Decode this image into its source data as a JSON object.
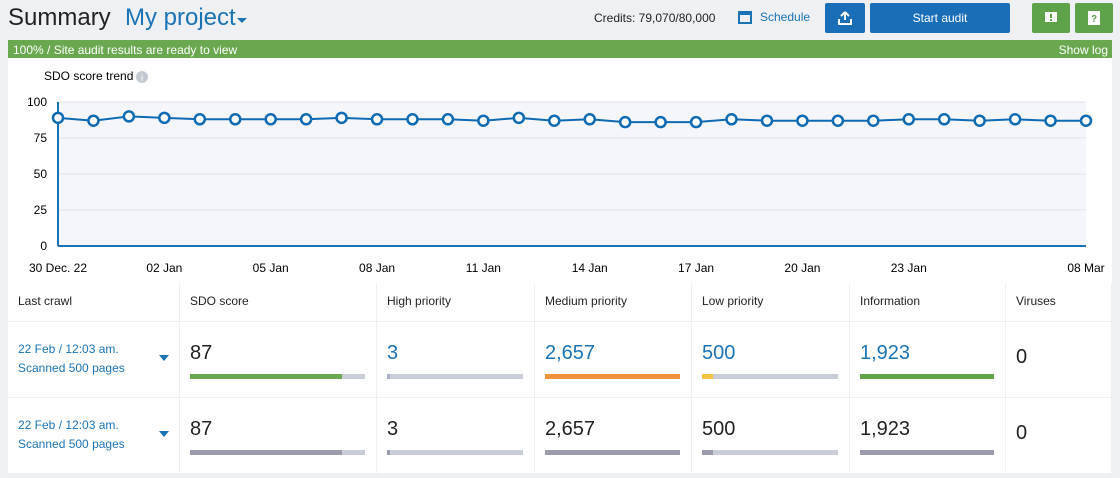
{
  "header": {
    "title": "Summary",
    "project": "My project",
    "credits": "Credits: 79,070/80,000",
    "schedule": "Schedule",
    "start_audit": "Start audit"
  },
  "status": {
    "message": "100% / Site audit results are ready to view",
    "show_log": "Show log"
  },
  "chart_data": {
    "type": "line",
    "title": "SDO score trend",
    "color": "#0f6ab4",
    "categories": [
      "30 Dec. 22",
      null,
      null,
      "02 Jan",
      null,
      null,
      "05 Jan",
      null,
      null,
      "08 Jan",
      null,
      null,
      "11 Jan",
      null,
      null,
      "14 Jan",
      null,
      null,
      "17 Jan",
      null,
      null,
      "20 Jan",
      null,
      null,
      "23 Jan",
      null,
      null,
      null,
      null,
      "08 Mar"
    ],
    "values": [
      89,
      87,
      90,
      89,
      88,
      88,
      88,
      88,
      89,
      88,
      88,
      88,
      87,
      89,
      87,
      88,
      86,
      86,
      86,
      88,
      87,
      87,
      87,
      87,
      88,
      88,
      87,
      88,
      87,
      87
    ],
    "ylim": [
      0,
      100
    ],
    "yticks": [
      0,
      25,
      50,
      75,
      100
    ],
    "grid": true
  },
  "table": {
    "columns": [
      "Last crawl",
      "SDO score",
      "High priority",
      "Medium priority",
      "Low priority",
      "Information",
      "Viruses"
    ],
    "rows": [
      [
        {
          "date": "22 Feb / 12:03 am.",
          "pages": "Scanned 500 pages"
        },
        {
          "text": "87",
          "color": "#222222",
          "bar": 87,
          "bar_color": "#6aa84f"
        },
        {
          "text": "3",
          "color": "#1a73b5",
          "bar": 2,
          "bar_color": "#a9b2c6"
        },
        {
          "text": "2,657",
          "color": "#1a73b5",
          "bar": 100,
          "bar_color": "#f0923a"
        },
        {
          "text": "500",
          "color": "#1a73b5",
          "bar": 8,
          "bar_color": "#f5c242"
        },
        {
          "text": "1,923",
          "color": "#1a73b5",
          "bar": 100,
          "bar_color": "#62a446"
        },
        {
          "text": "0",
          "color": "#222222"
        }
      ],
      [
        {
          "date": "22 Feb / 12:03 am.",
          "pages": "Scanned 500 pages"
        },
        {
          "text": "87",
          "color": "#222222",
          "bar": 87,
          "bar_color": "#9a9cab"
        },
        {
          "text": "3",
          "color": "#222222",
          "bar": 2,
          "bar_color": "#9a9cab"
        },
        {
          "text": "2,657",
          "color": "#222222",
          "bar": 100,
          "bar_color": "#9a9cab"
        },
        {
          "text": "500",
          "color": "#222222",
          "bar": 8,
          "bar_color": "#9a9cab"
        },
        {
          "text": "1,923",
          "color": "#222222",
          "bar": 100,
          "bar_color": "#9a9cab"
        },
        {
          "text": "0",
          "color": "#222222"
        }
      ]
    ]
  }
}
